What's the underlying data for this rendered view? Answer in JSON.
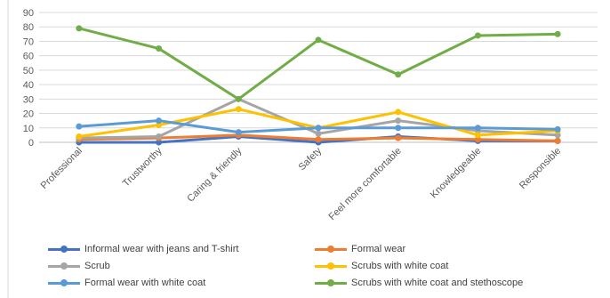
{
  "chart_data": {
    "type": "line",
    "title": "",
    "xlabel": "",
    "ylabel": "",
    "ylim": [
      0,
      90
    ],
    "ytick_step": 10,
    "grid": true,
    "legend_position": "bottom",
    "categories": [
      "Professional",
      "Trustworthy",
      "Caring & friendly",
      "Safety",
      "Feel more comfortable",
      "Knowledgeable",
      "Responsible"
    ],
    "yticks": [
      "0",
      "10",
      "20",
      "30",
      "40",
      "50",
      "60",
      "70",
      "80",
      "90"
    ],
    "series": [
      {
        "name": "Informal wear with jeans and T-shirt",
        "color": "#4472C4",
        "values": [
          0,
          0,
          4,
          0,
          4,
          1,
          1
        ]
      },
      {
        "name": "Formal wear",
        "color": "#ED7D31",
        "values": [
          2,
          3,
          5,
          2,
          3,
          2,
          1
        ]
      },
      {
        "name": "Scrub",
        "color": "#A5A5A5",
        "values": [
          3,
          4,
          30,
          6,
          15,
          8,
          5
        ]
      },
      {
        "name": "Scrubs with white coat",
        "color": "#FFC000",
        "values": [
          4,
          12,
          23,
          10,
          21,
          5,
          8
        ]
      },
      {
        "name": "Formal wear with white coat",
        "color": "#5B9BD5",
        "values": [
          11,
          15,
          7,
          10,
          10,
          10,
          9
        ]
      },
      {
        "name": "Scrubs with white coat and stethoscope",
        "color": "#70AD47",
        "values": [
          79,
          65,
          30,
          71,
          47,
          74,
          75
        ]
      }
    ]
  }
}
